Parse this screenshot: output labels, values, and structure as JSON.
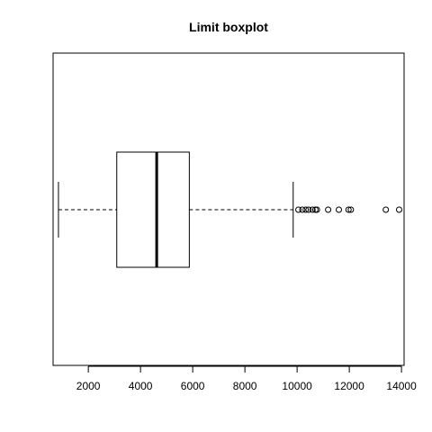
{
  "chart_data": {
    "type": "boxplot",
    "orientation": "horizontal",
    "title": "Limit boxplot",
    "xlabel": "",
    "ylabel": "",
    "xlim": [
      650,
      14100
    ],
    "x_ticks": [
      2000,
      4000,
      6000,
      8000,
      10000,
      12000,
      14000
    ],
    "x_tick_labels": [
      "2000",
      "4000",
      "6000",
      "8000",
      "10000",
      "12000",
      "14000"
    ],
    "grid": false,
    "box": {
      "whisker_low": 855,
      "q1": 3090,
      "median": 4620,
      "q3": 5870,
      "whisker_high": 9850
    },
    "outliers": [
      10050,
      10200,
      10330,
      10440,
      10590,
      10700,
      10760,
      11190,
      11600,
      11970,
      12060,
      13400,
      13910
    ]
  }
}
